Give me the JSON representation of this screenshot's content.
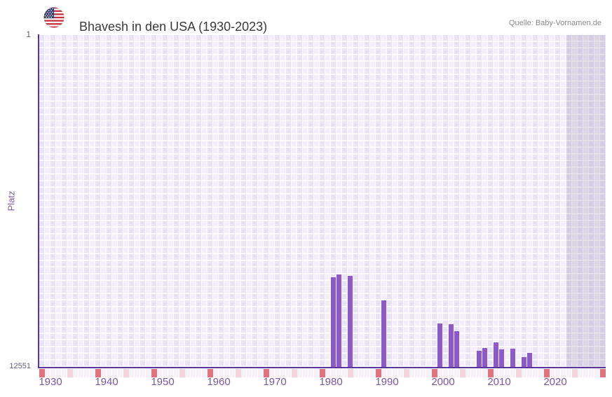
{
  "header": {
    "title": "Bhavesh in den USA (1930-2023)",
    "source": "Quelle: Baby-Vornamen.de",
    "flag_icon": "usa-flag"
  },
  "chart_data": {
    "type": "bar",
    "title": "Bhavesh in den USA (1930-2023)",
    "xlabel": "",
    "ylabel": "Platz",
    "grid": "on",
    "legend": "none",
    "y_axis": {
      "top_label": "1",
      "bottom_label": "12551",
      "min": 1,
      "max": 12551,
      "inverted": true
    },
    "x_axis": {
      "data_start": 1930,
      "data_end": 2023,
      "grid_end": 2030,
      "no_data_shade_from": 2024,
      "tick_years": [
        1930,
        1940,
        1950,
        1960,
        1970,
        1980,
        1990,
        2000,
        2010,
        2020
      ],
      "decade_marker_step": 10,
      "half_decade_marker_offset": 5
    },
    "series": [
      {
        "name": "Platz",
        "points": [
          {
            "year": 1982,
            "platz": 9150
          },
          {
            "year": 1983,
            "platz": 9050
          },
          {
            "year": 1985,
            "platz": 9120
          },
          {
            "year": 1991,
            "platz": 10040
          },
          {
            "year": 2001,
            "platz": 10900
          },
          {
            "year": 2003,
            "platz": 10930
          },
          {
            "year": 2004,
            "platz": 11210
          },
          {
            "year": 2008,
            "platz": 11940
          },
          {
            "year": 2009,
            "platz": 11840
          },
          {
            "year": 2011,
            "platz": 11620
          },
          {
            "year": 2012,
            "platz": 11880
          },
          {
            "year": 2014,
            "platz": 11870
          },
          {
            "year": 2016,
            "platz": 12190
          },
          {
            "year": 2017,
            "platz": 12020
          }
        ]
      }
    ],
    "colors": {
      "bar": "#8b5cc7",
      "axis_line": "#5b35a0",
      "x_tick_label": "#7b58a8",
      "y_tick_label": "#665a78",
      "axis_title": "#7c5fa0",
      "decade_marker": "#e0737c",
      "half_decade_marker": "#f2d5dd",
      "title_text": "#3a3a3a",
      "source_text": "#8a8a8a"
    }
  }
}
